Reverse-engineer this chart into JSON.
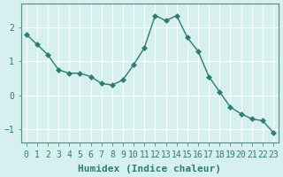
{
  "x": [
    0,
    1,
    2,
    3,
    4,
    5,
    6,
    7,
    8,
    9,
    10,
    11,
    12,
    13,
    14,
    15,
    16,
    17,
    18,
    19,
    20,
    21,
    22,
    23
  ],
  "y": [
    1.8,
    1.5,
    1.2,
    0.75,
    0.65,
    0.65,
    0.55,
    0.35,
    0.3,
    0.45,
    0.9,
    1.4,
    2.35,
    2.2,
    2.35,
    1.7,
    1.3,
    0.55,
    0.1,
    -0.35,
    -0.55,
    -0.7,
    -0.75,
    -1.1
  ],
  "line_color": "#2e7d6e",
  "marker": "D",
  "marker_size": 3,
  "bg_color": "#d5f0ee",
  "grid_color": "#ffffff",
  "axis_color": "#5a8a80",
  "xlabel": "Humidex (Indice chaleur)",
  "xlim": [
    -0.5,
    23.5
  ],
  "ylim": [
    -1.4,
    2.7
  ],
  "yticks": [
    -1,
    0,
    1,
    2
  ],
  "xtick_labels": [
    "0",
    "1",
    "2",
    "3",
    "4",
    "5",
    "6",
    "7",
    "8",
    "9",
    "10",
    "11",
    "12",
    "13",
    "14",
    "15",
    "16",
    "17",
    "18",
    "19",
    "20",
    "21",
    "22",
    "23"
  ],
  "tick_color": "#2e7d6e",
  "label_fontsize": 7.0,
  "xlabel_fontsize": 8
}
